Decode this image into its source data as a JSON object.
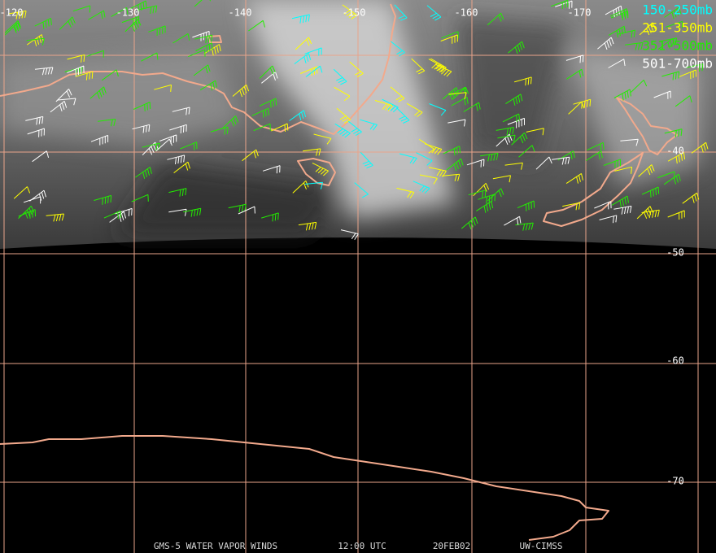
{
  "map": {
    "longitude_labels": [
      "-120",
      "-130",
      "-140",
      "-150",
      "-160",
      "-170"
    ],
    "latitude_labels": [
      "-40",
      "-50",
      "-60",
      "-70"
    ],
    "legend": [
      {
        "label": "150-250mb",
        "color": "#00ffff"
      },
      {
        "label": "251-350mb",
        "color": "#ffff00"
      },
      {
        "label": "351-500mb",
        "color": "#22ee00"
      },
      {
        "label": "501-700mb",
        "color": "#ffffff"
      }
    ],
    "footer": [
      "GMS-5 WATER VAPOR WINDS",
      "12:00 UTC",
      "20FEB02",
      "UW-CIMSS"
    ]
  }
}
